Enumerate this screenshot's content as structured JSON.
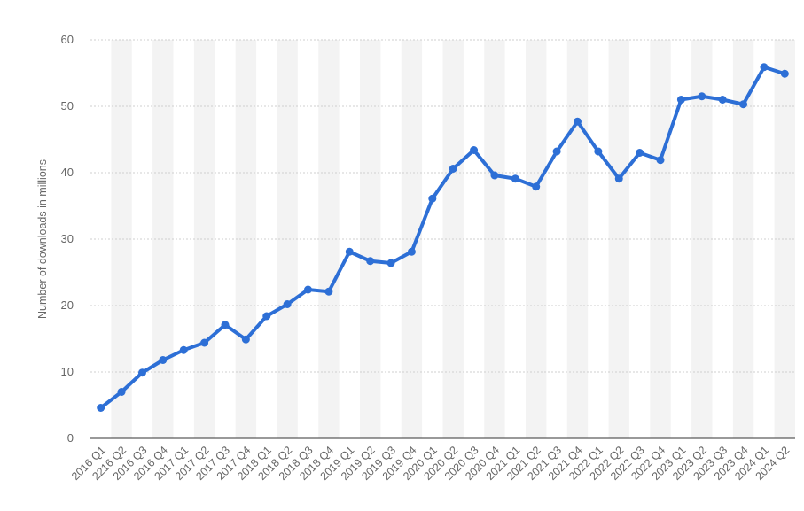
{
  "chart_data": {
    "type": "line",
    "title": "",
    "xlabel": "",
    "ylabel": "Number of downloads in millions",
    "ylim": [
      0,
      60
    ],
    "yticks": [
      0,
      10,
      20,
      30,
      40,
      50,
      60
    ],
    "grid": true,
    "legend": "none",
    "categories": [
      "2016 Q1",
      "2216 Q2",
      "2016 Q3",
      "2016 Q4",
      "2017 Q1",
      "2017 Q2",
      "2017 Q3",
      "2017 Q4",
      "2018 Q1",
      "2018 Q2",
      "2018 Q3",
      "2018 Q4",
      "2019 Q1",
      "2019 Q2",
      "2019 Q3",
      "2019 Q4",
      "2020 Q1",
      "2020 Q2",
      "2020 Q3",
      "2020 Q4",
      "2021 Q1",
      "2021 Q2",
      "2021 Q3",
      "2021 Q4",
      "2022 Q1",
      "2022 Q2",
      "2022 Q3",
      "2022 Q4",
      "2023 Q1",
      "2023 Q2",
      "2023 Q3",
      "2023 Q4",
      "2024 Q1",
      "2024 Q2"
    ],
    "values": [
      4.6,
      7.0,
      9.9,
      11.8,
      13.3,
      14.4,
      17.1,
      14.9,
      18.4,
      20.2,
      22.4,
      22.1,
      28.1,
      26.7,
      26.4,
      28.1,
      36.1,
      40.6,
      43.4,
      39.6,
      39.1,
      37.9,
      43.2,
      47.7,
      43.2,
      39.1,
      43.0,
      41.9,
      51.0,
      51.5,
      51.0,
      50.3,
      55.9,
      54.9
    ],
    "line_color": "#2d6fd6",
    "band_color": "#f3f3f3",
    "grid_color": "#cfcfcf",
    "axis_color": "#333333"
  }
}
